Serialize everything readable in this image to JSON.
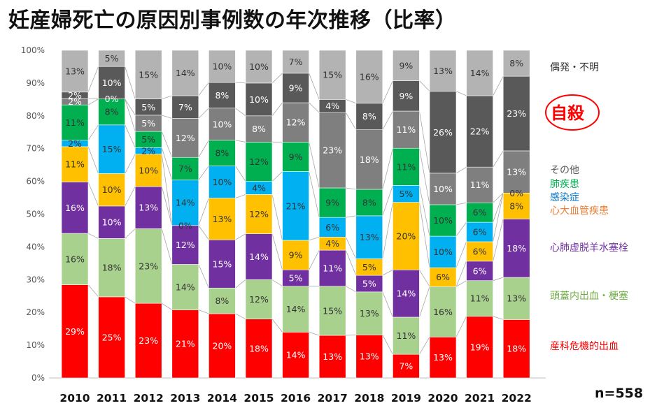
{
  "title": "妊産婦死亡の原因別事例数の年次推移（比率）",
  "n_label": "n=558",
  "chart_data": {
    "type": "bar",
    "stacked": true,
    "title": "妊産婦死亡の原因別事例数の年次推移（比率）",
    "xlabel": "",
    "ylabel": "",
    "ylim": [
      0,
      100
    ],
    "yticks": [
      "0%",
      "10%",
      "20%",
      "30%",
      "40%",
      "50%",
      "60%",
      "70%",
      "80%",
      "90%",
      "100%"
    ],
    "categories": [
      "2010",
      "2011",
      "2012",
      "2013",
      "2014",
      "2015",
      "2016",
      "2017",
      "2018",
      "2019",
      "2020",
      "2021",
      "2022"
    ],
    "series": [
      {
        "name": "産科危機的出血",
        "color": "#ff0000",
        "legend_color": "#ff0000",
        "text_color": "#ffffff",
        "values": [
          29,
          25,
          23,
          21,
          20,
          18,
          14,
          13,
          13,
          7,
          13,
          19,
          18
        ]
      },
      {
        "name": "頭蓋内出血・梗塞",
        "color": "#a9d18e",
        "legend_color": "#70ad47",
        "text_color": "#333333",
        "values": [
          16,
          18,
          23,
          14,
          8,
          12,
          14,
          15,
          13,
          11,
          16,
          11,
          13
        ]
      },
      {
        "name": "心肺虚脱羊水塞栓",
        "color": "#7030a0",
        "legend_color": "#7030a0",
        "text_color": "#ffffff",
        "values": [
          16,
          10,
          13,
          12,
          15,
          14,
          5,
          11,
          5,
          14,
          0,
          6,
          18
        ]
      },
      {
        "name": "心大血管疾患",
        "color": "#ffc000",
        "legend_color": "#ed7d31",
        "text_color": "#333333",
        "values": [
          11,
          10,
          10,
          0,
          13,
          12,
          9,
          4,
          5,
          20,
          6,
          6,
          8
        ]
      },
      {
        "name": "感染症",
        "color": "#00b0f0",
        "legend_color": "#0070c0",
        "text_color": "#333333",
        "values": [
          2,
          15,
          2,
          14,
          10,
          4,
          21,
          6,
          13,
          5,
          10,
          6,
          0
        ]
      },
      {
        "name": "肺疾患",
        "color": "#00b050",
        "legend_color": "#00b050",
        "text_color": "#333333",
        "values": [
          11,
          8,
          5,
          7,
          8,
          12,
          9,
          9,
          8,
          11,
          10,
          6,
          0
        ]
      },
      {
        "name": "その他",
        "color": "#7f7f7f",
        "legend_color": "#595959",
        "text_color": "#ffffff",
        "values": [
          2,
          0,
          5,
          12,
          10,
          8,
          12,
          23,
          18,
          11,
          10,
          11,
          13
        ]
      },
      {
        "name": "自殺",
        "color": "#595959",
        "legend_color": "#ff0000",
        "text_color": "#ffffff",
        "values": [
          2,
          10,
          5,
          7,
          8,
          10,
          9,
          4,
          8,
          9,
          26,
          22,
          23
        ]
      },
      {
        "name": "偶発・不明",
        "color": "#b3b3b3",
        "legend_color": "#333333",
        "text_color": "#333333",
        "values": [
          13,
          5,
          15,
          14,
          10,
          10,
          7,
          15,
          16,
          9,
          13,
          14,
          8
        ]
      }
    ],
    "data_labels": [
      [
        "29%",
        "16%",
        "16%",
        "11%",
        "2%",
        "11%",
        "2%",
        "2%",
        "13%"
      ],
      [
        "25%",
        "18%",
        "10%",
        "10%",
        "15%",
        "8%",
        "0%",
        "10%",
        "5%"
      ],
      [
        "23%",
        "23%",
        "13%",
        "10%",
        "2%",
        "5%",
        "5%",
        "5%",
        "15%"
      ],
      [
        "21%",
        "14%",
        "12%",
        "0%",
        "14%",
        "7%",
        "12%",
        "7%",
        "14%"
      ],
      [
        "20%",
        "8%",
        "15%",
        "13%",
        "10%",
        "8%",
        "10%",
        "8%",
        "10%"
      ],
      [
        "18%",
        "12%",
        "14%",
        "12%",
        "4%",
        "12%",
        "8%",
        "10%",
        "10%"
      ],
      [
        "14%",
        "14%",
        "5%",
        "9%",
        "21%",
        "9%",
        "12%",
        "9%",
        "7%"
      ],
      [
        "13%",
        "15%",
        "11%",
        "4%",
        "6%",
        "9%",
        "23%",
        "4%",
        "15%"
      ],
      [
        "13%",
        "13%",
        "5%",
        "5%",
        "13%",
        "8%",
        "18%",
        "8%",
        "16%"
      ],
      [
        "7%",
        "11%",
        "14%",
        "20%",
        "5%",
        "11%",
        "11%",
        "9%",
        "9%"
      ],
      [
        "13%",
        "16%",
        "",
        "6%",
        "10%",
        "10%",
        "10%",
        "26%",
        "13%"
      ],
      [
        "19%",
        "11%",
        "6%",
        "6%",
        "6%",
        "6%",
        "11%",
        "22%",
        "14%"
      ],
      [
        "18%",
        "13%",
        "18%",
        "8%",
        "0%",
        "",
        "13%",
        "23%",
        "8%"
      ]
    ],
    "legend_placement": "right",
    "grid": false
  }
}
